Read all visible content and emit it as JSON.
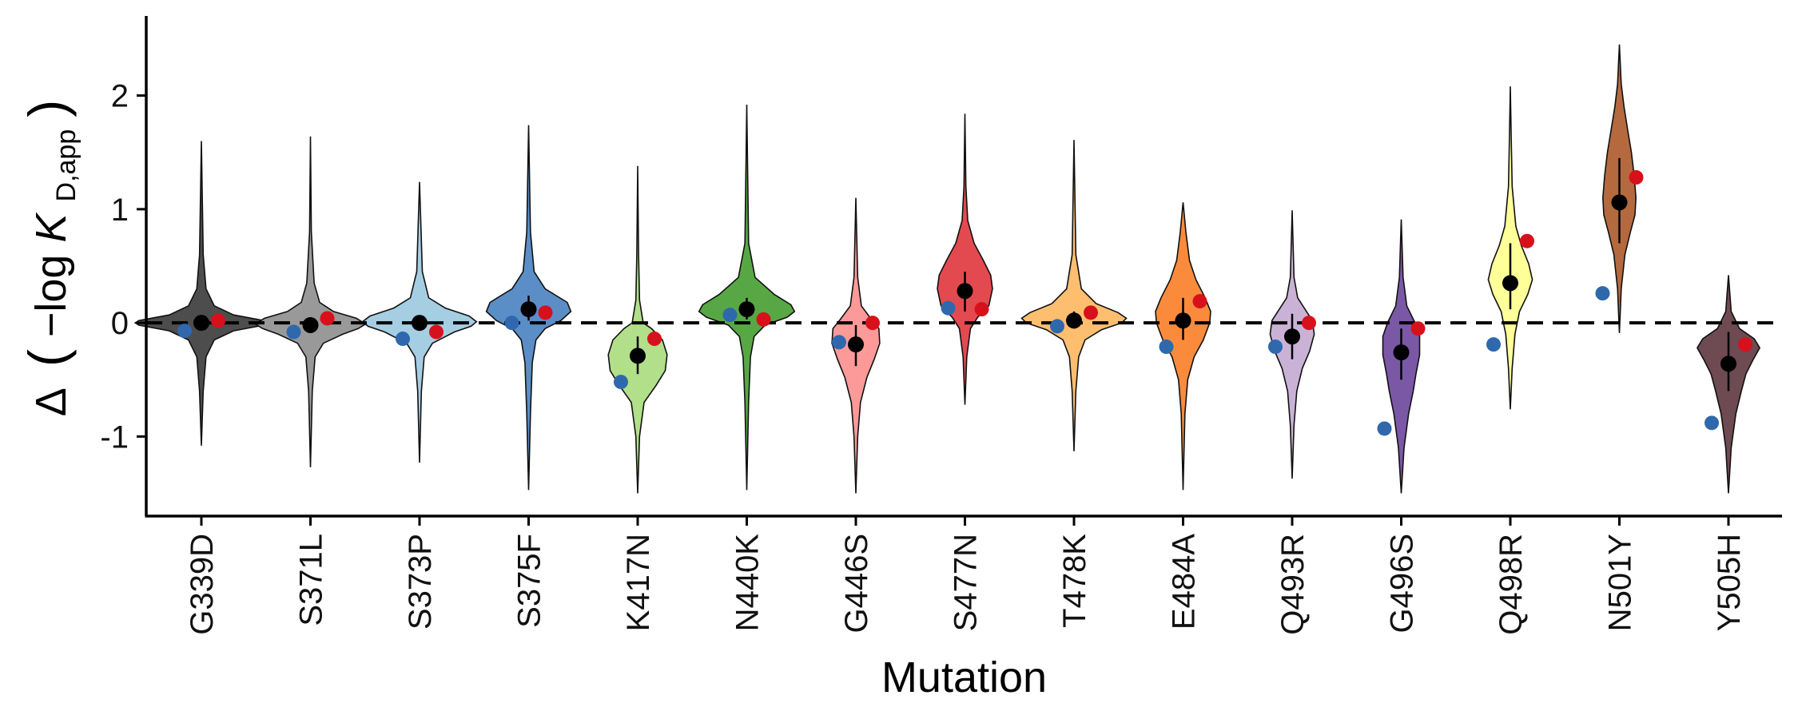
{
  "chart_data": {
    "type": "violin",
    "title": "",
    "xlabel": "Mutation",
    "ylabel": {
      "prefix": "Δ",
      "neg_log": "−log ",
      "K": "K",
      "subscript": "D,app"
    },
    "ylim": [
      -1.7,
      2.7
    ],
    "yticks": [
      2,
      1,
      0,
      -1
    ],
    "ytick_labels": [
      "2",
      "1",
      "0",
      "-1"
    ],
    "reference_line": 0,
    "grid": false,
    "legend": "none",
    "categories": [
      "G339D",
      "S371L",
      "S373P",
      "S375F",
      "K417N",
      "N440K",
      "G446S",
      "S477N",
      "T478K",
      "E484A",
      "Q493R",
      "G496S",
      "Q498R",
      "N501Y",
      "Y505H"
    ],
    "colors": [
      "#4d4d4d",
      "#999999",
      "#a6cee3",
      "#5b8ec7",
      "#b2df8a",
      "#57a845",
      "#fb9a99",
      "#e34a4f",
      "#fdbf6f",
      "#fb8b3c",
      "#cab2d6",
      "#7b58a6",
      "#ffff99",
      "#b5693f",
      "#6e4a52"
    ],
    "violins": [
      {
        "mutation": "G339D",
        "median": 0.0,
        "ci": [
          -0.06,
          0.06
        ],
        "min": -1.08,
        "max": 1.6,
        "profile": [
          [
            -1.08,
            0
          ],
          [
            -0.6,
            2
          ],
          [
            -0.3,
            5
          ],
          [
            -0.15,
            14
          ],
          [
            -0.07,
            35
          ],
          [
            -0.02,
            68
          ],
          [
            0,
            72
          ],
          [
            0.02,
            68
          ],
          [
            0.07,
            35
          ],
          [
            0.15,
            14
          ],
          [
            0.3,
            5
          ],
          [
            0.6,
            2
          ],
          [
            1.6,
            0
          ]
        ]
      },
      {
        "mutation": "S371L",
        "median": -0.02,
        "ci": [
          -0.08,
          0.05
        ],
        "min": -1.27,
        "max": 1.64,
        "profile": [
          [
            -1.27,
            0
          ],
          [
            -0.6,
            2
          ],
          [
            -0.3,
            5
          ],
          [
            -0.18,
            14
          ],
          [
            -0.1,
            35
          ],
          [
            -0.05,
            52
          ],
          [
            -0.01,
            60
          ],
          [
            0.04,
            50
          ],
          [
            0.1,
            25
          ],
          [
            0.18,
            10
          ],
          [
            0.35,
            4
          ],
          [
            0.8,
            1
          ],
          [
            1.64,
            0
          ]
        ]
      },
      {
        "mutation": "S373P",
        "median": 0.0,
        "ci": [
          -0.07,
          0.06
        ],
        "min": -1.23,
        "max": 1.24,
        "profile": [
          [
            -1.23,
            0
          ],
          [
            -0.6,
            2
          ],
          [
            -0.3,
            5
          ],
          [
            -0.18,
            14
          ],
          [
            -0.08,
            38
          ],
          [
            -0.03,
            56
          ],
          [
            0.01,
            62
          ],
          [
            0.06,
            54
          ],
          [
            0.13,
            28
          ],
          [
            0.22,
            10
          ],
          [
            0.45,
            3
          ],
          [
            1.24,
            0
          ]
        ]
      },
      {
        "mutation": "S375F",
        "median": 0.12,
        "ci": [
          0.02,
          0.24
        ],
        "min": -1.47,
        "max": 1.74,
        "profile": [
          [
            -1.47,
            0
          ],
          [
            -0.8,
            2
          ],
          [
            -0.35,
            4
          ],
          [
            -0.15,
            8
          ],
          [
            -0.05,
            18
          ],
          [
            0.02,
            35
          ],
          [
            0.1,
            46
          ],
          [
            0.18,
            42
          ],
          [
            0.3,
            18
          ],
          [
            0.45,
            6
          ],
          [
            0.8,
            2
          ],
          [
            1.74,
            0
          ]
        ]
      },
      {
        "mutation": "K417N",
        "median": -0.29,
        "ci": [
          -0.45,
          -0.12
        ],
        "min": -1.5,
        "max": 1.38,
        "profile": [
          [
            -1.5,
            0
          ],
          [
            -1.0,
            2
          ],
          [
            -0.7,
            7
          ],
          [
            -0.55,
            20
          ],
          [
            -0.42,
            30
          ],
          [
            -0.28,
            32
          ],
          [
            -0.15,
            27
          ],
          [
            -0.05,
            15
          ],
          [
            0.0,
            6
          ],
          [
            0.2,
            2
          ],
          [
            0.6,
            1
          ],
          [
            1.38,
            0
          ]
        ]
      },
      {
        "mutation": "N440K",
        "median": 0.12,
        "ci": [
          0.03,
          0.22
        ],
        "min": -1.47,
        "max": 1.92,
        "profile": [
          [
            -1.47,
            0
          ],
          [
            -0.7,
            2
          ],
          [
            -0.3,
            4
          ],
          [
            -0.12,
            8
          ],
          [
            -0.02,
            20
          ],
          [
            0.05,
            44
          ],
          [
            0.1,
            52
          ],
          [
            0.16,
            48
          ],
          [
            0.25,
            30
          ],
          [
            0.4,
            9
          ],
          [
            0.7,
            2
          ],
          [
            1.92,
            0
          ]
        ]
      },
      {
        "mutation": "G446S",
        "median": -0.19,
        "ci": [
          -0.38,
          -0.02
        ],
        "min": -1.5,
        "max": 1.1,
        "profile": [
          [
            -1.5,
            0
          ],
          [
            -1.0,
            2
          ],
          [
            -0.7,
            5
          ],
          [
            -0.48,
            12
          ],
          [
            -0.32,
            20
          ],
          [
            -0.18,
            26
          ],
          [
            -0.05,
            25
          ],
          [
            0.03,
            17
          ],
          [
            0.15,
            6
          ],
          [
            0.4,
            2
          ],
          [
            1.1,
            0
          ]
        ]
      },
      {
        "mutation": "S477N",
        "median": 0.28,
        "ci": [
          0.1,
          0.45
        ],
        "min": -0.72,
        "max": 1.84,
        "profile": [
          [
            -0.72,
            0
          ],
          [
            -0.3,
            2
          ],
          [
            -0.05,
            6
          ],
          [
            0.05,
            14
          ],
          [
            0.15,
            26
          ],
          [
            0.3,
            30
          ],
          [
            0.42,
            28
          ],
          [
            0.55,
            20
          ],
          [
            0.7,
            10
          ],
          [
            0.9,
            3
          ],
          [
            1.2,
            1
          ],
          [
            1.84,
            0
          ]
        ]
      },
      {
        "mutation": "T478K",
        "median": 0.02,
        "ci": [
          -0.05,
          0.1
        ],
        "min": -1.13,
        "max": 1.61,
        "profile": [
          [
            -1.13,
            0
          ],
          [
            -0.6,
            2
          ],
          [
            -0.3,
            5
          ],
          [
            -0.15,
            12
          ],
          [
            -0.06,
            30
          ],
          [
            0.0,
            52
          ],
          [
            0.04,
            57
          ],
          [
            0.09,
            48
          ],
          [
            0.17,
            24
          ],
          [
            0.3,
            8
          ],
          [
            0.6,
            2
          ],
          [
            1.61,
            0
          ]
        ]
      },
      {
        "mutation": "E484A",
        "median": 0.02,
        "ci": [
          -0.15,
          0.22
        ],
        "min": -1.47,
        "max": 1.06,
        "profile": [
          [
            -1.47,
            0
          ],
          [
            -0.8,
            2
          ],
          [
            -0.5,
            5
          ],
          [
            -0.3,
            12
          ],
          [
            -0.15,
            22
          ],
          [
            0.0,
            29
          ],
          [
            0.1,
            30
          ],
          [
            0.22,
            24
          ],
          [
            0.38,
            14
          ],
          [
            0.55,
            7
          ],
          [
            0.8,
            3
          ],
          [
            1.06,
            0
          ]
        ]
      },
      {
        "mutation": "Q493R",
        "median": -0.12,
        "ci": [
          -0.32,
          0.08
        ],
        "min": -1.37,
        "max": 0.99,
        "profile": [
          [
            -1.37,
            0
          ],
          [
            -0.9,
            2
          ],
          [
            -0.6,
            5
          ],
          [
            -0.4,
            11
          ],
          [
            -0.25,
            19
          ],
          [
            -0.1,
            24
          ],
          [
            0.02,
            22
          ],
          [
            0.12,
            14
          ],
          [
            0.22,
            6
          ],
          [
            0.4,
            2
          ],
          [
            0.99,
            0
          ]
        ]
      },
      {
        "mutation": "G496S",
        "median": -0.26,
        "ci": [
          -0.5,
          -0.05
        ],
        "min": -1.5,
        "max": 0.91,
        "profile": [
          [
            -1.5,
            0
          ],
          [
            -1.1,
            3
          ],
          [
            -0.8,
            8
          ],
          [
            -0.6,
            13
          ],
          [
            -0.45,
            16
          ],
          [
            -0.28,
            20
          ],
          [
            -0.12,
            20
          ],
          [
            0.0,
            15
          ],
          [
            0.15,
            6
          ],
          [
            0.4,
            2
          ],
          [
            0.91,
            0
          ]
        ]
      },
      {
        "mutation": "Q498R",
        "median": 0.35,
        "ci": [
          0.12,
          0.7
        ],
        "min": -0.76,
        "max": 2.08,
        "profile": [
          [
            -0.76,
            0
          ],
          [
            -0.4,
            2
          ],
          [
            -0.1,
            5
          ],
          [
            0.1,
            10
          ],
          [
            0.25,
            19
          ],
          [
            0.38,
            24
          ],
          [
            0.52,
            20
          ],
          [
            0.68,
            12
          ],
          [
            0.85,
            6
          ],
          [
            1.2,
            2
          ],
          [
            1.6,
            1
          ],
          [
            2.08,
            0
          ]
        ]
      },
      {
        "mutation": "N501Y",
        "median": 1.06,
        "ci": [
          0.7,
          1.45
        ],
        "min": -0.09,
        "max": 2.45,
        "profile": [
          [
            -0.09,
            0
          ],
          [
            0.3,
            2
          ],
          [
            0.6,
            6
          ],
          [
            0.8,
            12
          ],
          [
            0.95,
            17
          ],
          [
            1.1,
            18
          ],
          [
            1.3,
            16
          ],
          [
            1.5,
            13
          ],
          [
            1.7,
            9
          ],
          [
            1.9,
            5
          ],
          [
            2.1,
            2
          ],
          [
            2.45,
            0
          ]
        ]
      },
      {
        "mutation": "Y505H",
        "median": -0.36,
        "ci": [
          -0.6,
          -0.08
        ],
        "min": -1.5,
        "max": 0.42,
        "profile": [
          [
            -1.5,
            0
          ],
          [
            -1.1,
            3
          ],
          [
            -0.8,
            8
          ],
          [
            -0.6,
            14
          ],
          [
            -0.45,
            19
          ],
          [
            -0.32,
            27
          ],
          [
            -0.22,
            34
          ],
          [
            -0.14,
            28
          ],
          [
            -0.05,
            12
          ],
          [
            0.1,
            3
          ],
          [
            0.42,
            0
          ]
        ]
      }
    ],
    "blue_points": [
      {
        "mutation": "G339D",
        "value": -0.07,
        "err": 0.03
      },
      {
        "mutation": "S371L",
        "value": -0.08,
        "err": 0.03
      },
      {
        "mutation": "S373P",
        "value": -0.14,
        "err": 0.03
      },
      {
        "mutation": "S375F",
        "value": 0.0,
        "err": 0.03
      },
      {
        "mutation": "K417N",
        "value": -0.52,
        "err": 0.03
      },
      {
        "mutation": "N440K",
        "value": 0.07,
        "err": 0.03
      },
      {
        "mutation": "G446S",
        "value": -0.17,
        "err": 0.04
      },
      {
        "mutation": "S477N",
        "value": 0.13,
        "err": 0.03
      },
      {
        "mutation": "T478K",
        "value": -0.03,
        "err": 0.03
      },
      {
        "mutation": "E484A",
        "value": -0.21,
        "err": 0.04
      },
      {
        "mutation": "Q493R",
        "value": -0.21,
        "err": 0.03
      },
      {
        "mutation": "G496S",
        "value": -0.93,
        "err": 0.04
      },
      {
        "mutation": "Q498R",
        "value": -0.19,
        "err": 0.03
      },
      {
        "mutation": "N501Y",
        "value": 0.26,
        "err": 0.04
      },
      {
        "mutation": "Y505H",
        "value": -0.88,
        "err": 0.05
      }
    ],
    "red_points": [
      {
        "mutation": "G339D",
        "value": 0.02,
        "err": 0.03
      },
      {
        "mutation": "S371L",
        "value": 0.04,
        "err": 0.03
      },
      {
        "mutation": "S373P",
        "value": -0.08,
        "err": 0.03
      },
      {
        "mutation": "S375F",
        "value": 0.09,
        "err": 0.04
      },
      {
        "mutation": "K417N",
        "value": -0.14,
        "err": 0.03
      },
      {
        "mutation": "N440K",
        "value": 0.03,
        "err": 0.03
      },
      {
        "mutation": "G446S",
        "value": 0.0,
        "err": 0.03
      },
      {
        "mutation": "S477N",
        "value": 0.12,
        "err": 0.03
      },
      {
        "mutation": "T478K",
        "value": 0.09,
        "err": 0.03
      },
      {
        "mutation": "E484A",
        "value": 0.19,
        "err": 0.03
      },
      {
        "mutation": "Q493R",
        "value": 0.0,
        "err": 0.03
      },
      {
        "mutation": "G496S",
        "value": -0.05,
        "err": 0.04
      },
      {
        "mutation": "Q498R",
        "value": 0.72,
        "err": 0.04
      },
      {
        "mutation": "N501Y",
        "value": 1.28,
        "err": 0.03
      },
      {
        "mutation": "Y505H",
        "value": -0.19,
        "err": 0.03
      }
    ],
    "point_colors": {
      "blue": "#2f68ad",
      "red": "#d7111b",
      "median": "#000000"
    }
  }
}
